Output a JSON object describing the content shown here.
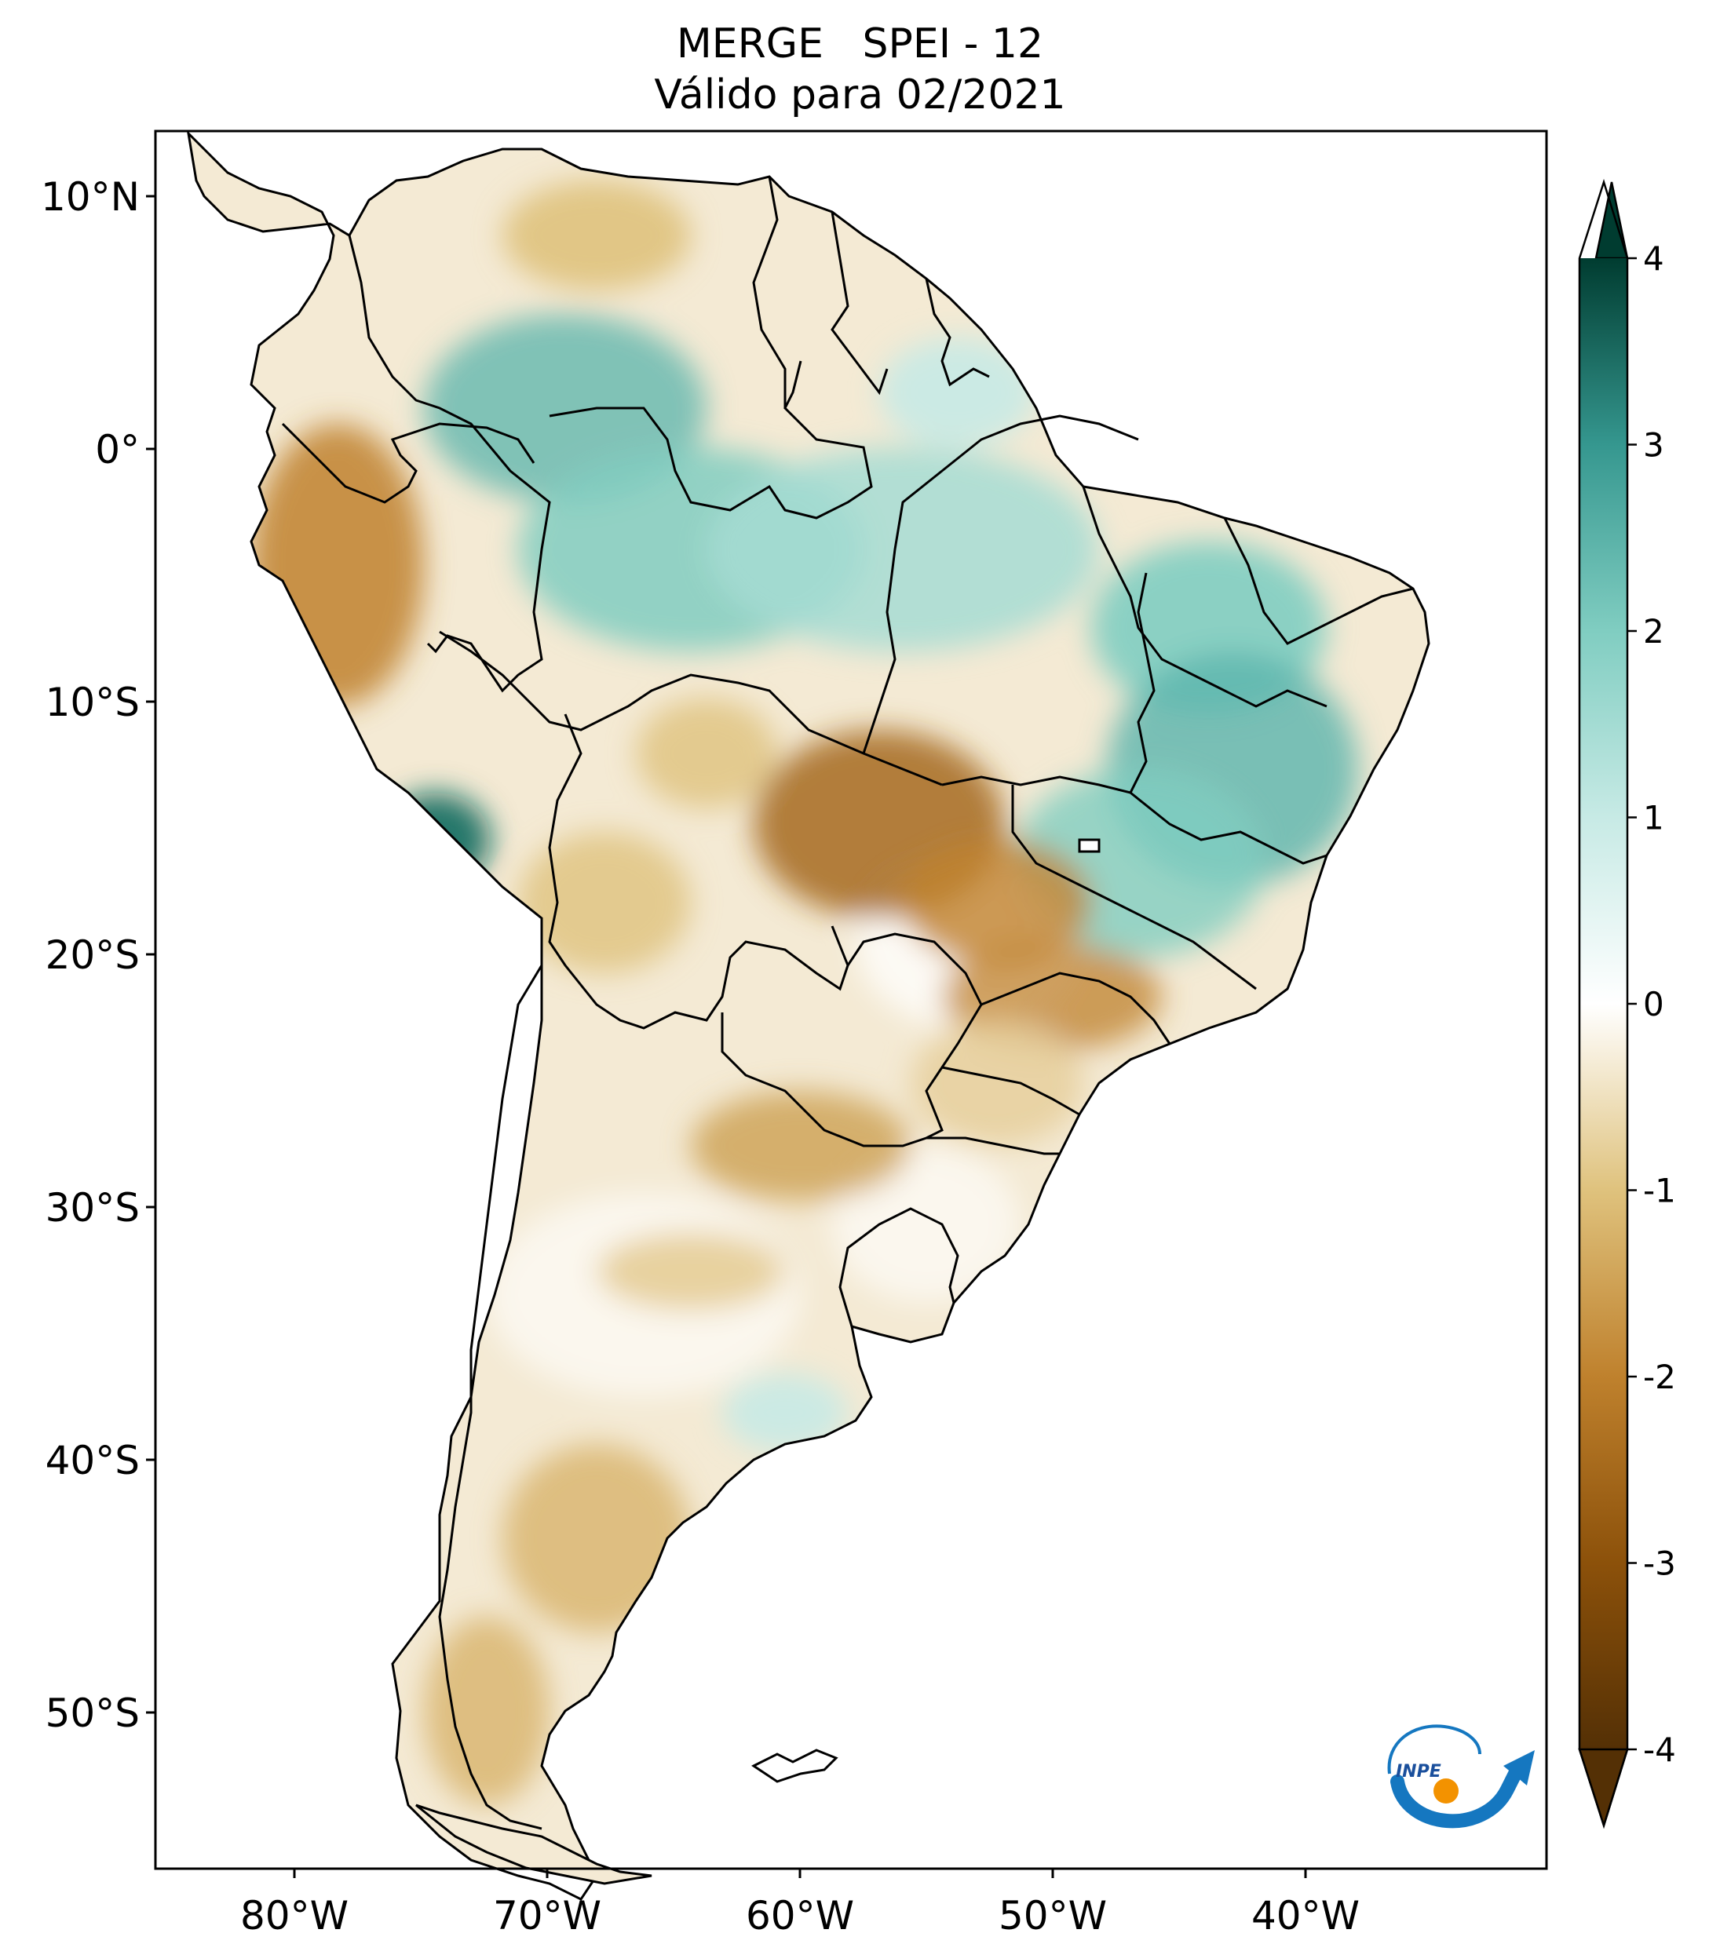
{
  "title": {
    "line1": "MERGE   SPEI - 12",
    "line2": "Válido para 02/2021"
  },
  "map": {
    "region": "South America",
    "variable": "SPEI - 12",
    "lon_range": [
      -85,
      -29
    ],
    "lat_range": [
      -56,
      13
    ],
    "lon_ticks": [
      {
        "value": -80,
        "label": "80°W"
      },
      {
        "value": -70,
        "label": "70°W"
      },
      {
        "value": -60,
        "label": "60°W"
      },
      {
        "value": -50,
        "label": "50°W"
      },
      {
        "value": -40,
        "label": "40°W"
      }
    ],
    "lat_ticks": [
      {
        "value": 10,
        "label": "10°N"
      },
      {
        "value": 0,
        "label": "0°"
      },
      {
        "value": -10,
        "label": "10°S"
      },
      {
        "value": -20,
        "label": "20°S"
      },
      {
        "value": -30,
        "label": "30°S"
      },
      {
        "value": -40,
        "label": "40°S"
      },
      {
        "value": -50,
        "label": "50°S"
      }
    ]
  },
  "colorbar": {
    "min": -4,
    "max": 4,
    "extend": "both",
    "ticks": [
      {
        "value": 4,
        "label": "4"
      },
      {
        "value": 3,
        "label": "3"
      },
      {
        "value": 2,
        "label": "2"
      },
      {
        "value": 1,
        "label": "1"
      },
      {
        "value": 0,
        "label": "0"
      },
      {
        "value": -1,
        "label": "-1"
      },
      {
        "value": -2,
        "label": "-2"
      },
      {
        "value": -3,
        "label": "-3"
      },
      {
        "value": -4,
        "label": "-4"
      }
    ],
    "colors": {
      "4": "#003c30",
      "3": "#0a6a5e",
      "2": "#5ab4ac",
      "1": "#c7eae5",
      "0": "#ffffff",
      "-1": "#f3e4c0",
      "-2": "#d8b36a",
      "-3": "#a66a1e",
      "-4": "#543005"
    }
  },
  "logo": {
    "text": "INPE",
    "colors": {
      "ring": "#1577c0",
      "dot": "#f39200"
    }
  }
}
